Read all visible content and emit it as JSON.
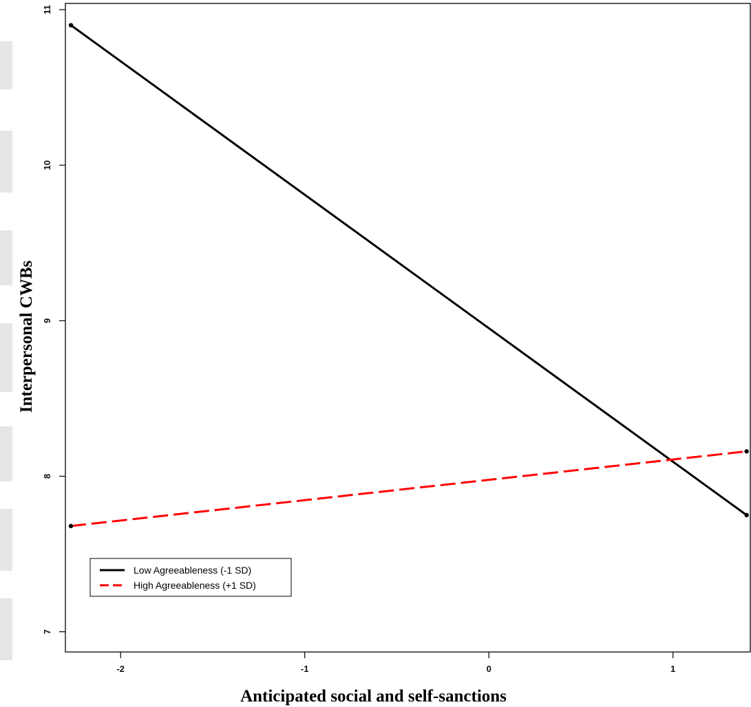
{
  "chart_data": {
    "type": "line",
    "title": "",
    "xlabel": "Anticipated social and self-sanctions",
    "ylabel": "Interpersonal CWBs",
    "xlim": [
      -2.3,
      1.42
    ],
    "ylim": [
      6.87,
      11.04
    ],
    "xticks": [
      -2,
      -1,
      0,
      1
    ],
    "yticks": [
      7,
      8,
      9,
      10,
      11
    ],
    "grid": false,
    "legend_position": "bottom-left",
    "series": [
      {
        "name": "Low Agreeableness (-1 SD)",
        "color": "#000000",
        "dash": "solid",
        "x": [
          -2.27,
          1.4
        ],
        "y": [
          10.9,
          7.75
        ]
      },
      {
        "name": "High Agreeableness (+1 SD)",
        "color": "#ff0000",
        "dash": "dashed",
        "x": [
          -2.27,
          1.4
        ],
        "y": [
          7.68,
          8.16
        ]
      }
    ]
  }
}
